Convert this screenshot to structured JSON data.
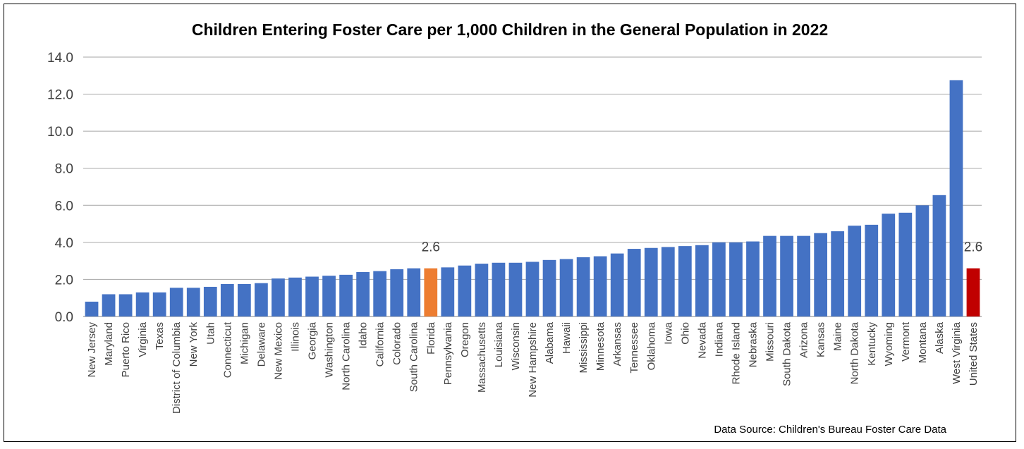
{
  "chart_data": {
    "type": "bar",
    "title": "Children Entering Foster Care per 1,000 Children in the General Population in 2022",
    "source_note": "Data Source: Children's Bureau Foster Care Data",
    "ylim": [
      0,
      14
    ],
    "y_ticks": [
      "0.0",
      "2.0",
      "4.0",
      "6.0",
      "8.0",
      "10.0",
      "12.0",
      "14.0"
    ],
    "grid": true,
    "legend": "none",
    "categories": [
      "New Jersey",
      "Maryland",
      "Puerto Rico",
      "Virginia",
      "Texas",
      "District of Columbia",
      "New York",
      "Utah",
      "Connecticut",
      "Michigan",
      "Delaware",
      "New Mexico",
      "Illinois",
      "Georgia",
      "Washington",
      "North Carolina",
      "Idaho",
      "California",
      "Colorado",
      "South Carolina",
      "Florida",
      "Pennsylvania",
      "Oregon",
      "Massachusetts",
      "Louisiana",
      "Wisconsin",
      "New Hampshire",
      "Alabama",
      "Hawaii",
      "Mississippi",
      "Minnesota",
      "Arkansas",
      "Tennessee",
      "Oklahoma",
      "Iowa",
      "Ohio",
      "Nevada",
      "Indiana",
      "Rhode Island",
      "Nebraska",
      "Missouri",
      "South Dakota",
      "Arizona",
      "Kansas",
      "Maine",
      "North Dakota",
      "Kentucky",
      "Wyoming",
      "Vermont",
      "Montana",
      "Alaska",
      "West Virginia",
      "United States"
    ],
    "values": [
      0.8,
      1.2,
      1.2,
      1.3,
      1.3,
      1.55,
      1.55,
      1.6,
      1.75,
      1.75,
      1.8,
      2.05,
      2.1,
      2.15,
      2.2,
      2.25,
      2.4,
      2.45,
      2.55,
      2.6,
      2.6,
      2.65,
      2.75,
      2.85,
      2.9,
      2.9,
      2.95,
      3.05,
      3.1,
      3.2,
      3.25,
      3.4,
      3.65,
      3.7,
      3.75,
      3.8,
      3.85,
      4.0,
      4.0,
      4.05,
      4.35,
      4.35,
      4.35,
      4.5,
      4.6,
      4.9,
      4.95,
      5.55,
      5.6,
      6.0,
      6.55,
      12.75,
      2.6
    ],
    "colors": {
      "default": "#4472C4",
      "Florida": "#ED7D31",
      "United States": "#C00000",
      "grid": "#A6A6A6",
      "axis": "#808080"
    },
    "data_labels": [
      {
        "category": "Florida",
        "text": "2.6"
      },
      {
        "category": "United States",
        "text": "2.6"
      }
    ]
  }
}
